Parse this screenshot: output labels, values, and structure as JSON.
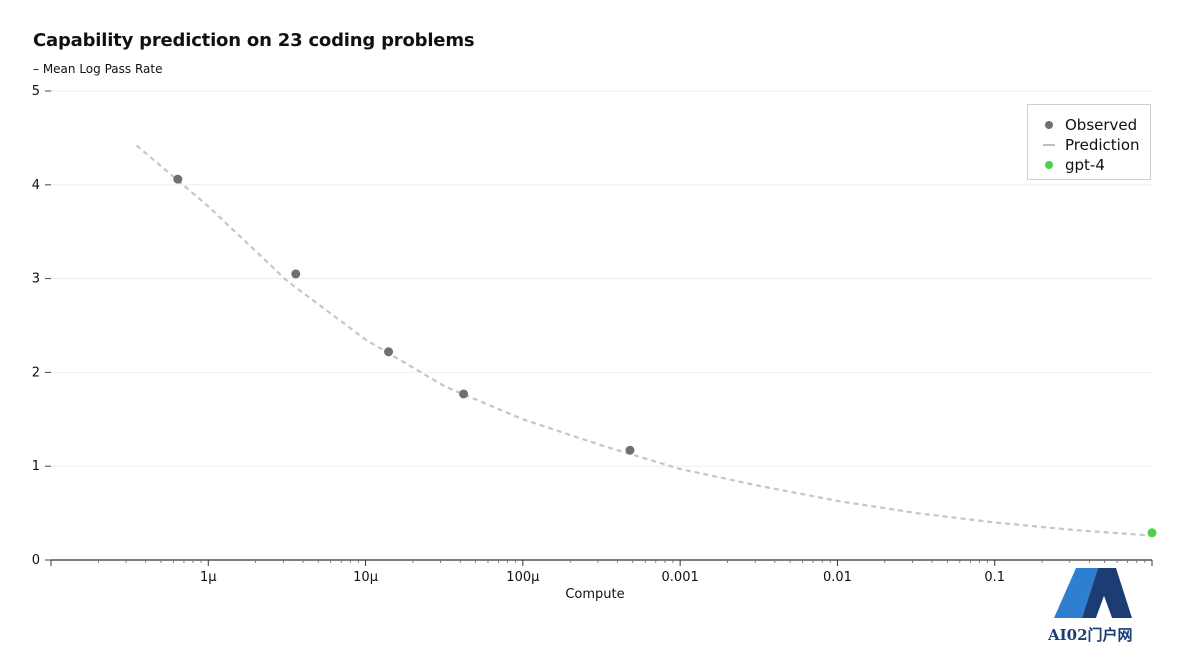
{
  "chart_data": {
    "type": "scatter",
    "title": "Capability prediction on 23 coding problems",
    "ylabel": "– Mean Log Pass Rate",
    "xlabel": "Compute",
    "x_scale": "log",
    "xlim": [
      1e-07,
      1
    ],
    "ylim": [
      0,
      5
    ],
    "y_ticks": [
      "0",
      "1",
      "2",
      "3",
      "4",
      "5"
    ],
    "x_ticks": [
      {
        "value": 1e-06,
        "label": "1μ"
      },
      {
        "value": 1e-05,
        "label": "10μ"
      },
      {
        "value": 0.0001,
        "label": "100μ"
      },
      {
        "value": 0.001,
        "label": "0.001"
      },
      {
        "value": 0.01,
        "label": "0.01"
      },
      {
        "value": 0.1,
        "label": "0.1"
      }
    ],
    "grid": "horizontal",
    "legend_position": "top-right",
    "series": [
      {
        "name": "Observed",
        "kind": "points",
        "color": "#707070",
        "points": [
          {
            "x": 6.4e-07,
            "y": 4.06
          },
          {
            "x": 3.6e-06,
            "y": 3.05
          },
          {
            "x": 1.4e-05,
            "y": 2.22
          },
          {
            "x": 4.2e-05,
            "y": 1.77
          },
          {
            "x": 0.00048,
            "y": 1.17
          }
        ]
      },
      {
        "name": "Prediction",
        "kind": "dashed-line",
        "color": "#c6c6c6",
        "points": [
          {
            "x": 3.5e-07,
            "y": 4.42
          },
          {
            "x": 1e-06,
            "y": 3.77
          },
          {
            "x": 3.2e-06,
            "y": 2.97
          },
          {
            "x": 1e-05,
            "y": 2.35
          },
          {
            "x": 3.2e-05,
            "y": 1.85
          },
          {
            "x": 0.0001,
            "y": 1.5
          },
          {
            "x": 0.00032,
            "y": 1.22
          },
          {
            "x": 0.001,
            "y": 0.97
          },
          {
            "x": 0.0032,
            "y": 0.79
          },
          {
            "x": 0.01,
            "y": 0.63
          },
          {
            "x": 0.032,
            "y": 0.5
          },
          {
            "x": 0.1,
            "y": 0.4
          },
          {
            "x": 0.32,
            "y": 0.32
          },
          {
            "x": 1,
            "y": 0.26
          }
        ]
      },
      {
        "name": "gpt-4",
        "kind": "points",
        "color": "#4ccf4c",
        "points": [
          {
            "x": 1,
            "y": 0.29
          }
        ]
      }
    ]
  },
  "watermark": {
    "text": "AI02门户网",
    "colors": {
      "primary": "#1b3d73",
      "accent": "#2f7fd0"
    }
  }
}
